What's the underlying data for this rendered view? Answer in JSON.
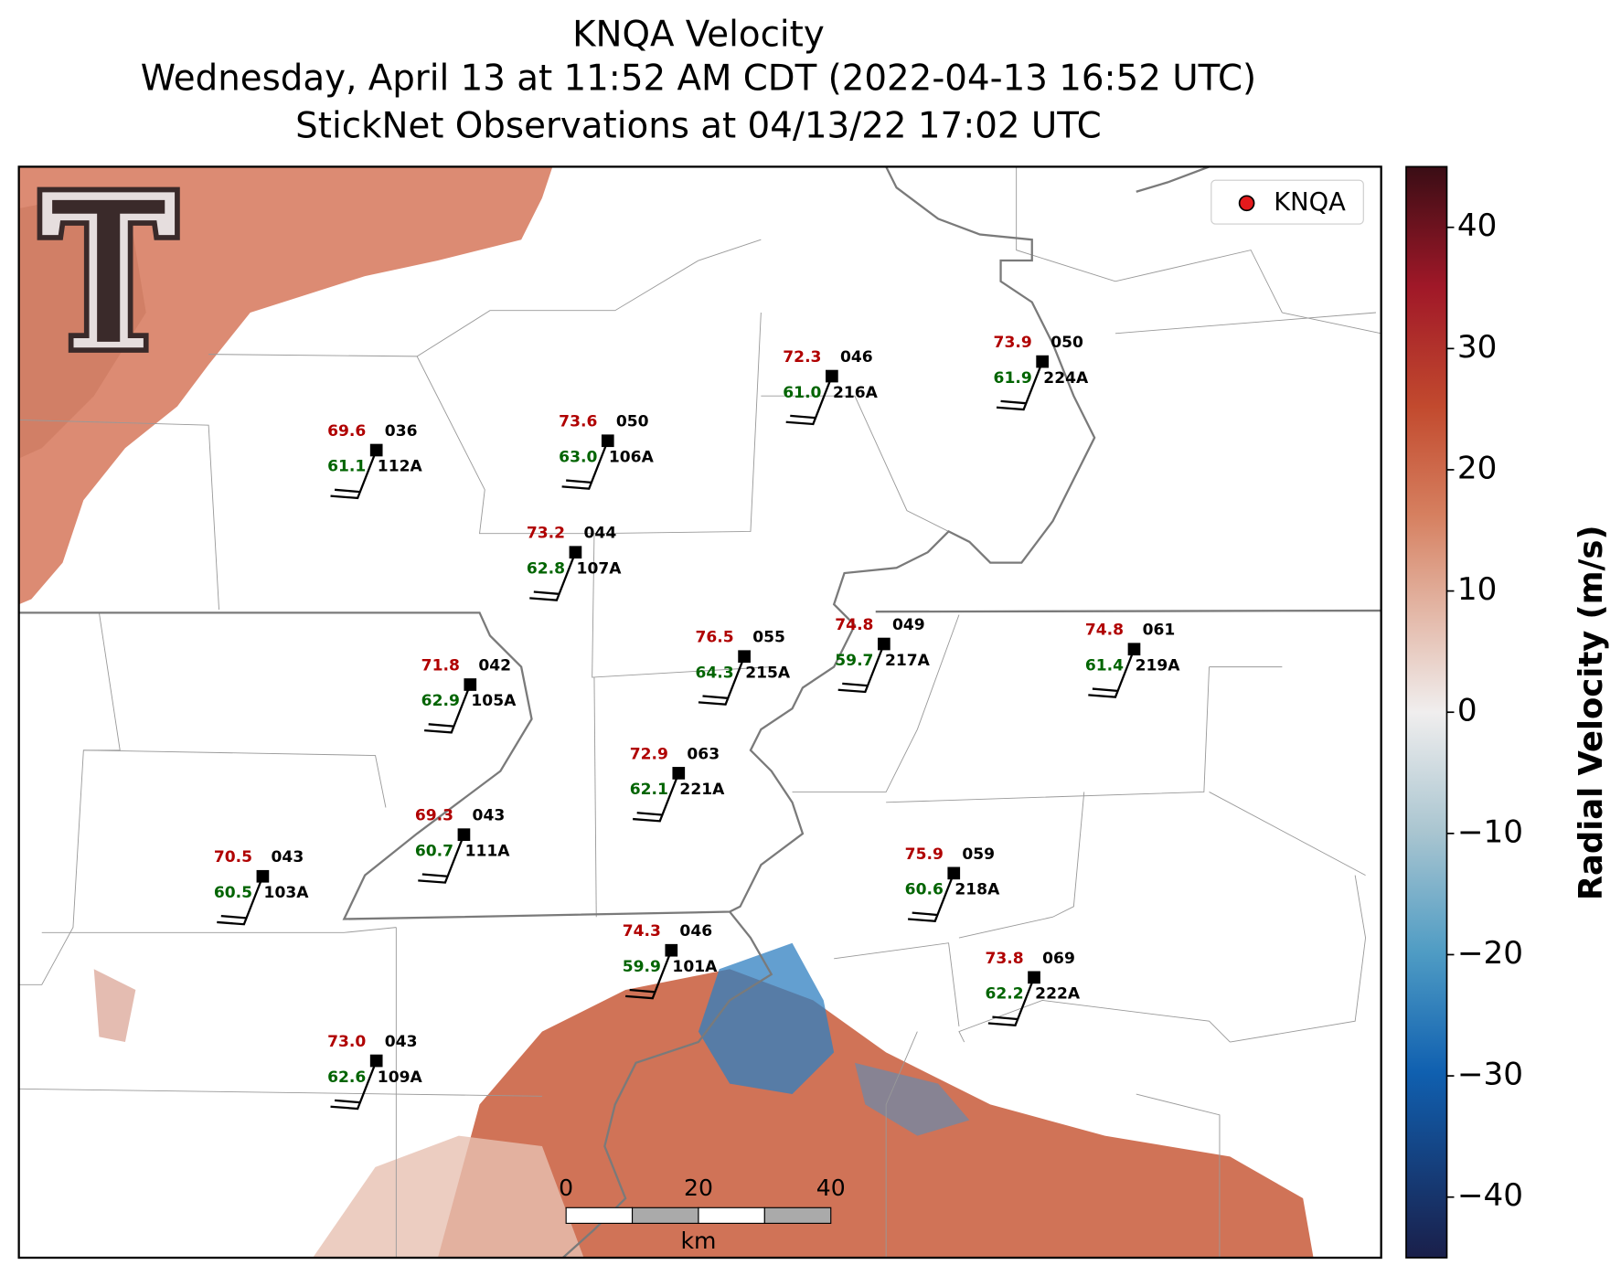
{
  "title": {
    "line1": "KNQA Velocity",
    "line2": "Wednesday, April 13 at 11:52 AM CDT (2022-04-13 16:52 UTC)",
    "line3": "StickNet Observations at 04/13/22 17:02 UTC"
  },
  "legend": {
    "label": "KNQA"
  },
  "stations": [
    {
      "id": "112A",
      "temp": "69.6",
      "dewpoint": "61.1",
      "value": "036"
    },
    {
      "id": "106A",
      "temp": "73.6",
      "dewpoint": "63.0",
      "value": "050"
    },
    {
      "id": "216A",
      "temp": "72.3",
      "dewpoint": "61.0",
      "value": "046"
    },
    {
      "id": "224A",
      "temp": "73.9",
      "dewpoint": "61.9",
      "value": "050"
    },
    {
      "id": "107A",
      "temp": "73.2",
      "dewpoint": "62.8",
      "value": "044"
    },
    {
      "id": "215A",
      "temp": "76.5",
      "dewpoint": "64.3",
      "value": "055"
    },
    {
      "id": "217A",
      "temp": "74.8",
      "dewpoint": "59.7",
      "value": "049"
    },
    {
      "id": "219A",
      "temp": "74.8",
      "dewpoint": "61.4",
      "value": "061"
    },
    {
      "id": "105A",
      "temp": "71.8",
      "dewpoint": "62.9",
      "value": "042"
    },
    {
      "id": "221A",
      "temp": "72.9",
      "dewpoint": "62.1",
      "value": "063"
    },
    {
      "id": "111A",
      "temp": "69.3",
      "dewpoint": "60.7",
      "value": "043"
    },
    {
      "id": "103A",
      "temp": "70.5",
      "dewpoint": "60.5",
      "value": "043"
    },
    {
      "id": "218A",
      "temp": "75.9",
      "dewpoint": "60.6",
      "value": "059"
    },
    {
      "id": "101A",
      "temp": "74.3",
      "dewpoint": "59.9",
      "value": "046"
    },
    {
      "id": "222A",
      "temp": "73.8",
      "dewpoint": "62.2",
      "value": "069"
    },
    {
      "id": "109A",
      "temp": "73.0",
      "dewpoint": "62.6",
      "value": "043"
    }
  ],
  "colorbar": {
    "label": "Radial Velocity (m/s)",
    "limits": [
      -45,
      45
    ],
    "ticks": [
      {
        "value": -40,
        "label": "−40"
      },
      {
        "value": -30,
        "label": "−30"
      },
      {
        "value": -20,
        "label": "−20"
      },
      {
        "value": -10,
        "label": "−10"
      },
      0,
      10,
      20,
      30,
      40
    ]
  },
  "scale_bar": {
    "ticks": [
      0,
      20,
      40
    ],
    "unit": "km"
  }
}
